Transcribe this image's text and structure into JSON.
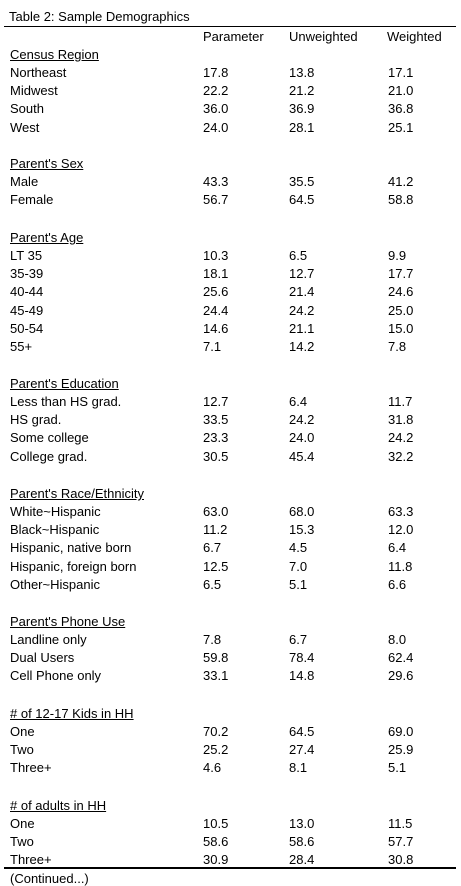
{
  "title": "Table 2: Sample Demographics",
  "columns": [
    "Parameter",
    "Unweighted",
    "Weighted"
  ],
  "sections": [
    {
      "heading": "Census Region",
      "rows": [
        {
          "label": "Northeast",
          "values": [
            "17.8",
            "13.8",
            "17.1"
          ]
        },
        {
          "label": "Midwest",
          "values": [
            "22.2",
            "21.2",
            "21.0"
          ]
        },
        {
          "label": "South",
          "values": [
            "36.0",
            "36.9",
            "36.8"
          ]
        },
        {
          "label": "West",
          "values": [
            "24.0",
            "28.1",
            "25.1"
          ]
        }
      ]
    },
    {
      "heading": "Parent's Sex",
      "rows": [
        {
          "label": "Male",
          "values": [
            "43.3",
            "35.5",
            "41.2"
          ]
        },
        {
          "label": "Female",
          "values": [
            "56.7",
            "64.5",
            "58.8"
          ]
        }
      ]
    },
    {
      "heading": "Parent's Age",
      "rows": [
        {
          "label": "LT 35",
          "values": [
            "10.3",
            "6.5",
            "9.9"
          ]
        },
        {
          "label": "35-39",
          "values": [
            "18.1",
            "12.7",
            "17.7"
          ]
        },
        {
          "label": "40-44",
          "values": [
            "25.6",
            "21.4",
            "24.6"
          ]
        },
        {
          "label": "45-49",
          "values": [
            "24.4",
            "24.2",
            "25.0"
          ]
        },
        {
          "label": "50-54",
          "values": [
            "14.6",
            "21.1",
            "15.0"
          ]
        },
        {
          "label": "55+",
          "values": [
            "7.1",
            "14.2",
            "7.8"
          ]
        }
      ]
    },
    {
      "heading": "Parent's Education",
      "rows": [
        {
          "label": "Less than HS grad.",
          "values": [
            "12.7",
            "6.4",
            "11.7"
          ]
        },
        {
          "label": "HS grad.",
          "values": [
            "33.5",
            "24.2",
            "31.8"
          ]
        },
        {
          "label": "Some college",
          "values": [
            "23.3",
            "24.0",
            "24.2"
          ]
        },
        {
          "label": "College grad.",
          "values": [
            "30.5",
            "45.4",
            "32.2"
          ]
        }
      ]
    },
    {
      "heading": "Parent's Race/Ethnicity",
      "rows": [
        {
          "label": "White~Hispanic",
          "values": [
            "63.0",
            "68.0",
            "63.3"
          ]
        },
        {
          "label": "Black~Hispanic",
          "values": [
            "11.2",
            "15.3",
            "12.0"
          ]
        },
        {
          "label": "Hispanic, native born",
          "values": [
            "6.7",
            "4.5",
            "6.4"
          ]
        },
        {
          "label": "Hispanic, foreign born",
          "values": [
            "12.5",
            "7.0",
            "11.8"
          ]
        },
        {
          "label": "Other~Hispanic",
          "values": [
            "6.5",
            "5.1",
            "6.6"
          ]
        }
      ]
    },
    {
      "heading": "Parent's Phone Use",
      "rows": [
        {
          "label": "Landline only",
          "values": [
            "7.8",
            "6.7",
            "8.0"
          ]
        },
        {
          "label": "Dual Users",
          "values": [
            "59.8",
            "78.4",
            "62.4"
          ]
        },
        {
          "label": "Cell Phone only",
          "values": [
            "33.1",
            "14.8",
            "29.6"
          ]
        }
      ]
    },
    {
      "heading": "# of 12-17 Kids in HH",
      "rows": [
        {
          "label": "One",
          "values": [
            "70.2",
            "64.5",
            "69.0"
          ]
        },
        {
          "label": "Two",
          "values": [
            "25.2",
            "27.4",
            "25.9"
          ]
        },
        {
          "label": "Three+",
          "values": [
            "4.6",
            "8.1",
            "5.1"
          ]
        }
      ]
    },
    {
      "heading": "# of adults in HH",
      "rows": [
        {
          "label": "One",
          "values": [
            "10.5",
            "13.0",
            "11.5"
          ]
        },
        {
          "label": "Two",
          "values": [
            "58.6",
            "58.6",
            "57.7"
          ]
        },
        {
          "label": "Three+",
          "values": [
            "30.9",
            "28.4",
            "30.8"
          ]
        }
      ]
    }
  ],
  "footer": "(Continued...)"
}
